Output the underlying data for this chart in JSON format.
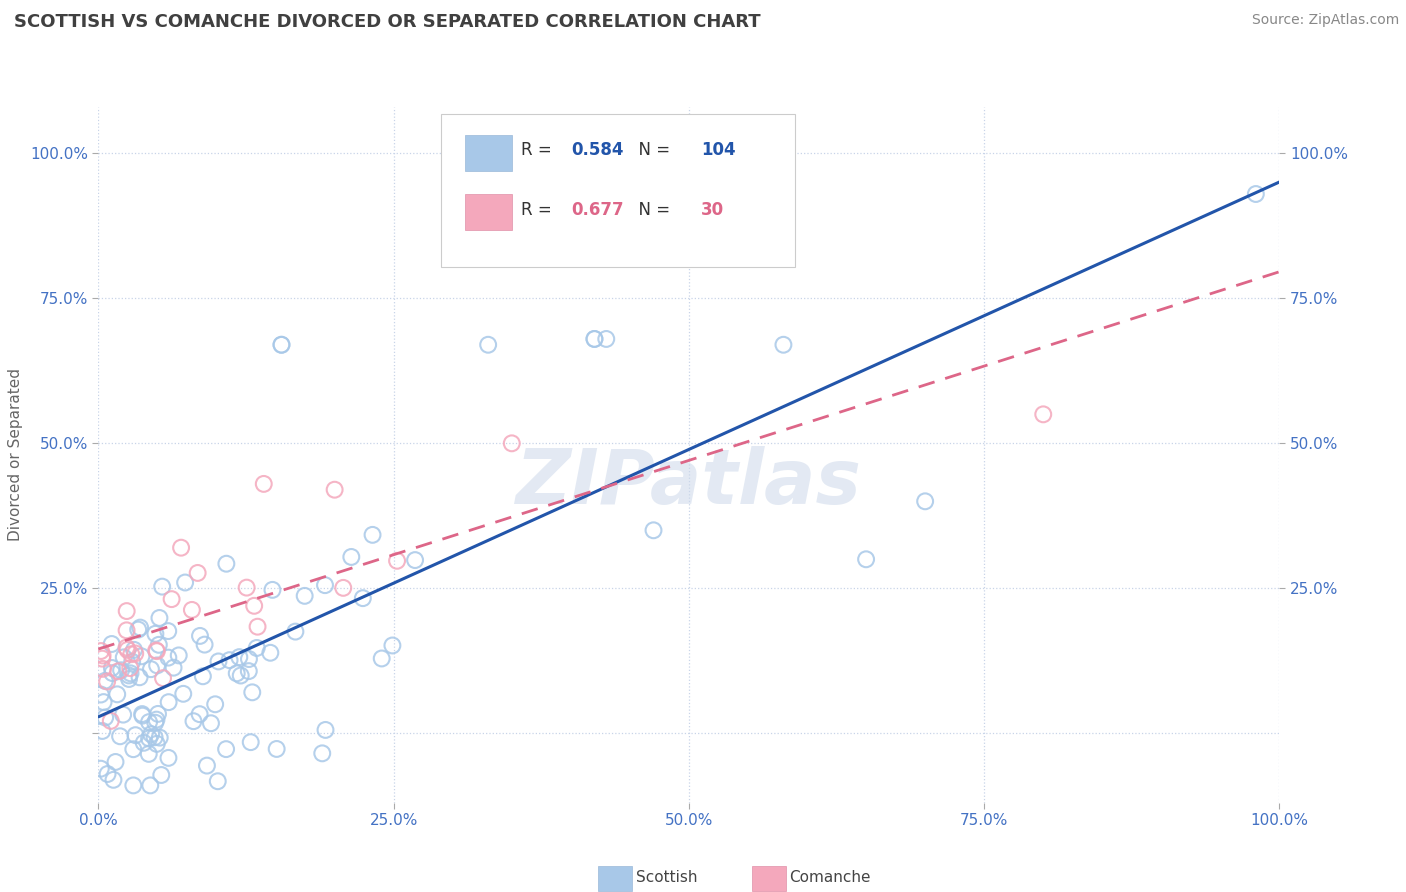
{
  "title": "SCOTTISH VS COMANCHE DIVORCED OR SEPARATED CORRELATION CHART",
  "source": "Source: ZipAtlas.com",
  "ylabel": "Divorced or Separated",
  "xlim": [
    0,
    1.0
  ],
  "ylim": [
    -0.12,
    1.08
  ],
  "scottish_R": 0.584,
  "scottish_N": 104,
  "comanche_R": 0.677,
  "comanche_N": 30,
  "scottish_color": "#a8c8e8",
  "comanche_color": "#f4a8bc",
  "scottish_line_color": "#2255aa",
  "comanche_line_color": "#dd6688",
  "background_color": "#ffffff",
  "grid_color": "#c8d4e8",
  "watermark": "ZIPatlas",
  "watermark_color": "#ccd8ea",
  "title_color": "#404040",
  "tick_color": "#4472c4",
  "source_color": "#888888"
}
